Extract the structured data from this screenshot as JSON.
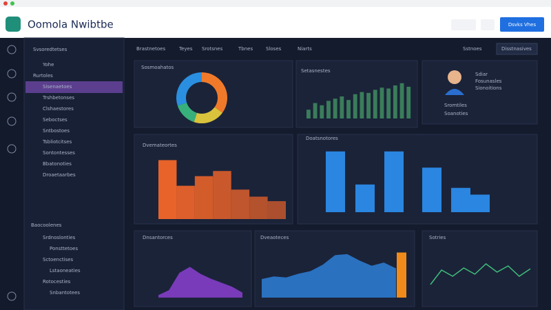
{
  "header": {
    "title": "Oomola Nwibtbe",
    "button": "Dsvks Vhes"
  },
  "sidebar": {
    "section1": "Svsoredtetses",
    "items1": [
      "Yohe",
      "Rurtoles",
      "Sisenaetoes",
      "Trshbetonses",
      "Clshaestores",
      "Seboctses",
      "Sntbostoes",
      "Tsbliotcitses",
      "Sontontesses",
      "Bbatonoties",
      "Droaetaarbes"
    ],
    "section2": "Baocoolenes",
    "items2": [
      "Srdnoslonties",
      "Ponsttetoes",
      "Sctoenctises",
      "Lstaoneaties",
      "Rotocesties",
      "Snbantotees"
    ]
  },
  "tabs": [
    "Brastnetoes",
    "Teyes",
    "Srotsnes",
    "Tbnes",
    "Sloses",
    "Niarts"
  ],
  "toolbar": [
    "Sstnoes",
    "Disstnasives"
  ],
  "panels": {
    "donut": {
      "title": "Sosmoahatos"
    },
    "minibars": {
      "title": "Setasnestes"
    },
    "profile": {
      "lines": [
        "Sdiar",
        "Fosunasles",
        "Sionoitions"
      ],
      "stats": [
        "Sromtiles",
        "Soanoties"
      ]
    },
    "orange": {
      "title": "Dvemateortes"
    },
    "blue": {
      "title": "Doatsnotores"
    },
    "purple": {
      "title": "Dnsantorces"
    },
    "bluearea": {
      "title": "Dveaoteces"
    },
    "line": {
      "title": "Sotries"
    }
  },
  "charts": {
    "donut": {
      "type": "pie",
      "values": [
        35,
        20,
        15,
        30
      ],
      "colors": [
        "#f07a2a",
        "#d9c23c",
        "#37b07c",
        "#2a8fe0"
      ]
    },
    "minibars": {
      "type": "bar",
      "values": [
        20,
        35,
        30,
        40,
        45,
        50,
        42,
        55,
        60,
        58,
        65,
        70,
        68,
        75,
        80,
        72
      ],
      "color": "#3a7d5a",
      "ylim": [
        0,
        100
      ]
    },
    "orange": {
      "type": "bar",
      "values": [
        92,
        52,
        67,
        75,
        46,
        35,
        28
      ],
      "color": "#e8632a",
      "ylim": [
        0,
        100
      ]
    },
    "blue": {
      "type": "bar",
      "values": [
        90,
        41,
        90,
        66,
        36,
        26
      ],
      "color": "#2a86e0",
      "ylim": [
        0,
        100
      ]
    },
    "purple": {
      "type": "area",
      "values": [
        5,
        15,
        50,
        62,
        48,
        38,
        30,
        22,
        10
      ],
      "color": "#8a3fd1",
      "ylim": [
        0,
        100
      ]
    },
    "bluearea": {
      "type": "area",
      "values": [
        35,
        40,
        38,
        45,
        50,
        62,
        80,
        82,
        70,
        60,
        66,
        55
      ],
      "color": "#2d7fd8",
      "ylim": [
        0,
        100
      ],
      "highlight": 85,
      "highlight_color": "#f08a1a"
    },
    "line": {
      "type": "line",
      "values": [
        20,
        55,
        40,
        60,
        45,
        70,
        50,
        65,
        40,
        58
      ],
      "color": "#3fbf7a",
      "ylim": [
        0,
        100
      ]
    }
  }
}
